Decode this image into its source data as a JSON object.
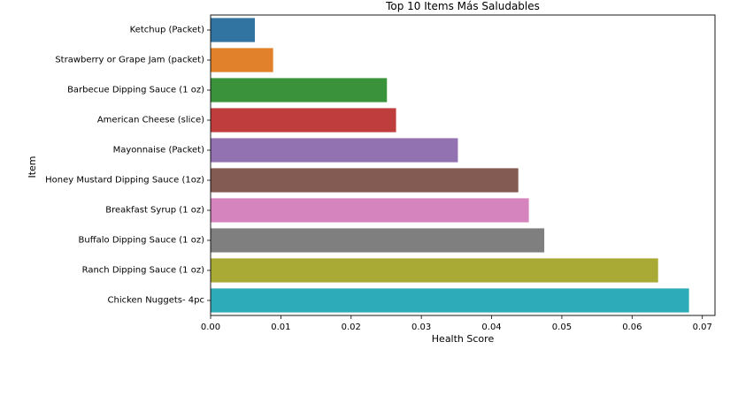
{
  "chart_data": {
    "type": "bar",
    "orientation": "horizontal",
    "title": "Top 10 Items Más Saludables",
    "xlabel": "Health Score",
    "ylabel": "Item",
    "xlim": [
      0.0,
      0.0718
    ],
    "x_ticks": [
      0.0,
      0.01,
      0.02,
      0.03,
      0.04,
      0.05,
      0.06,
      0.07
    ],
    "x_tick_labels": [
      "0.00",
      "0.01",
      "0.02",
      "0.03",
      "0.04",
      "0.05",
      "0.06",
      "0.07"
    ],
    "grid": false,
    "legend": "none",
    "categories": [
      "Ketchup (Packet)",
      "Strawberry or Grape Jam (packet)",
      "Barbecue Dipping Sauce (1 oz)",
      "American Cheese (slice)",
      "Mayonnaise (Packet)",
      "Honey Mustard Dipping Sauce (1oz)",
      "Breakfast Syrup (1 oz)",
      "Buffalo Dipping Sauce (1 oz)",
      "Ranch Dipping Sauce (1 oz)",
      "Chicken Nuggets- 4pc"
    ],
    "values": [
      0.0063,
      0.0089,
      0.0251,
      0.0264,
      0.0352,
      0.0438,
      0.0453,
      0.0475,
      0.0637,
      0.0681
    ],
    "colors": [
      "#3274a1",
      "#e1812c",
      "#3a923a",
      "#c03d3e",
      "#9372b2",
      "#845b53",
      "#d684bd",
      "#7f7f7f",
      "#a9aa35",
      "#2eabb8"
    ]
  }
}
